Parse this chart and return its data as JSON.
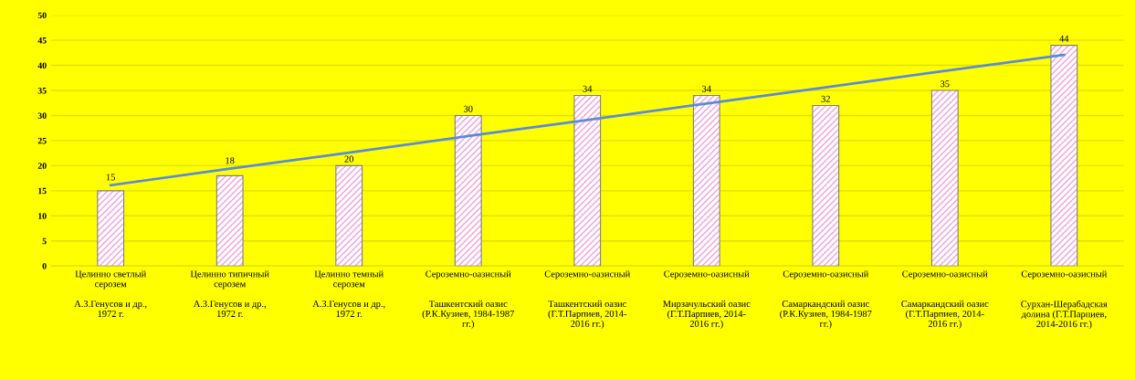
{
  "chart_data": {
    "type": "bar",
    "categories": [
      "Целинно светлый\nсерозем\n\nА.З.Генусов и др.,\n1972 г.",
      "Целинно типичный\nсерозем\n\nА.З.Генусов и др.,\n1972 г.",
      "Целинно темный\nсерозем\n\nА.З.Генусов и др.,\n1972 г.",
      "Сероземно-оазисный\n\n\nТашкентский оазис\n(Р.К.Кузиев, 1984-1987\nгг.)",
      "Сероземно-оазисный\n\n\nТашкентский оазис\n(Г.Т.Парпиев, 2014-\n2016 гг.)",
      "Сероземно-оазисный\n\n\nМирзачульский оазис\n(Г.Т.Парпиев, 2014-\n2016 гг.)",
      "Сероземно-оазисный\n\n\nСамаркандский оазис\n(Р.К.Кузиев, 1984-1987\nгг.)",
      "Сероземно-оазисный\n\n\nСамаркандский оазис\n(Г.Т.Парпиев, 2014-\n2016 гг.)",
      "Сероземно-оазисный\n\n\nСурхан-Шерабадская\nдолина (Г.Т.Парпиев,\n2014-2016 гг.)"
    ],
    "series": [
      {
        "color": "#f0a0e0",
        "values": [
          15,
          18,
          20,
          30,
          34,
          34,
          32,
          35,
          44
        ],
        "value_labels": [
          "15",
          "18",
          "20",
          "30",
          "34",
          "34",
          "32",
          "35",
          "44"
        ]
      },
      {
        "type": "line",
        "color": "#5b8bd9",
        "values": [
          16.1,
          19.4,
          22.6,
          25.9,
          29.1,
          32.4,
          35.6,
          38.9,
          42.1
        ]
      }
    ],
    "ylim": [
      0,
      50
    ],
    "yticks": [
      0,
      5,
      10,
      15,
      20,
      25,
      30,
      35,
      40,
      45,
      50
    ],
    "grid": "y",
    "legend": false,
    "marker": "none",
    "line_style": "solid"
  }
}
